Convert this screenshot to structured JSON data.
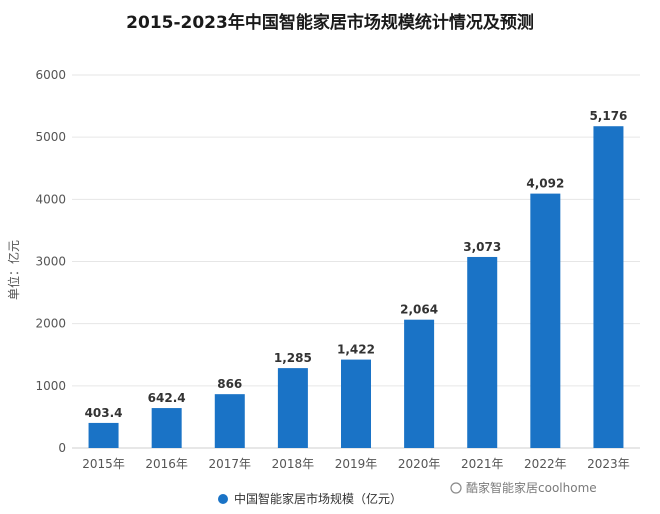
{
  "title": "2015-2023年中国智能家居市场规模统计情况及预测",
  "watermark": "酷家智能家居coolhome",
  "colors": {
    "bar": "#1a73c6",
    "grid": "#e6e6e6",
    "axis": "#cfcfcf",
    "text": "#555555"
  },
  "chart_data": {
    "type": "bar",
    "title": "2015-2023年中国智能家居市场规模统计情况及预测",
    "xlabel": "",
    "ylabel": "单位：亿元",
    "categories": [
      "2015年",
      "2016年",
      "2017年",
      "2018年",
      "2019年",
      "2020年",
      "2021年",
      "2022年",
      "2023年"
    ],
    "series": [
      {
        "name": "中国智能家居市场规模（亿元）",
        "values": [
          403.4,
          642.4,
          866,
          1285,
          1422,
          2064,
          3073,
          4092,
          5176
        ],
        "labels": [
          "403.4",
          "642.4",
          "866",
          "1,285",
          "1,422",
          "2,064",
          "3,073",
          "4,092",
          "5,176"
        ]
      }
    ],
    "ylim": [
      0,
      6000
    ],
    "yticks": [
      0,
      1000,
      2000,
      3000,
      4000,
      5000,
      6000
    ],
    "grid": true,
    "legend_position": "bottom"
  }
}
